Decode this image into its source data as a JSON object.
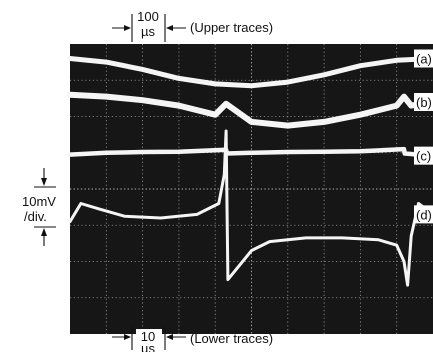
{
  "chart_data": {
    "type": "line",
    "title": "",
    "xlabel": "",
    "ylabel": "",
    "grid": true,
    "divisions": {
      "x": 10,
      "y": 8
    },
    "annotations": {
      "upper_timebase_value": "100",
      "upper_timebase_unit": "µs",
      "upper_timebase_note": "(Upper traces)",
      "lower_timebase_value": "10",
      "lower_timebase_unit": "µs",
      "lower_timebase_note": "(Lower traces)",
      "vertical_scale_line1": "10mV",
      "vertical_scale_line2": "/div."
    },
    "series": [
      {
        "name": "(a)",
        "x": [
          0,
          1,
          2,
          3,
          4,
          5,
          6,
          7,
          8,
          9,
          10
        ],
        "y": [
          7.6,
          7.5,
          7.3,
          7.05,
          6.9,
          6.85,
          6.95,
          7.15,
          7.4,
          7.55,
          7.6
        ]
      },
      {
        "name": "(b)",
        "x": [
          0,
          1,
          2,
          3,
          4,
          4.3,
          5,
          6,
          7,
          8,
          9,
          9.2,
          9.4,
          10
        ],
        "y": [
          6.6,
          6.55,
          6.45,
          6.3,
          6.05,
          6.35,
          5.85,
          5.75,
          5.85,
          6.05,
          6.3,
          6.55,
          6.3,
          6.4
        ]
      },
      {
        "name": "(c)",
        "x": [
          0,
          1,
          2,
          3,
          4.3,
          4.32,
          5,
          6,
          7,
          8,
          9.2,
          9.22,
          10
        ],
        "y": [
          4.95,
          5.0,
          5.02,
          5.03,
          5.08,
          4.98,
          5.0,
          5.02,
          5.03,
          5.04,
          5.1,
          4.98,
          4.92
        ]
      },
      {
        "name": "(d)",
        "x": [
          0,
          0.3,
          0.8,
          1.5,
          2.5,
          3.5,
          4.1,
          4.25,
          4.3,
          4.35,
          5,
          5.5,
          6.5,
          7.5,
          8.5,
          9.0,
          9.2,
          9.3,
          9.4,
          9.6,
          10
        ],
        "y": [
          3.1,
          3.6,
          3.45,
          3.25,
          3.2,
          3.3,
          3.6,
          4.4,
          5.6,
          1.5,
          2.3,
          2.55,
          2.65,
          2.65,
          2.6,
          2.45,
          2.0,
          1.35,
          2.7,
          3.6,
          3.3
        ]
      }
    ]
  }
}
